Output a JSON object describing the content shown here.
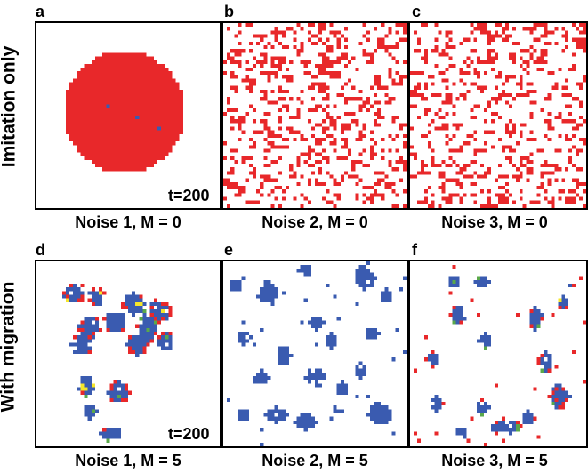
{
  "rows": [
    {
      "label": "Imitation only"
    },
    {
      "label": "With migration"
    }
  ],
  "panels": [
    {
      "letter": "a",
      "caption": "Noise 1, M = 0",
      "time": "t=200"
    },
    {
      "letter": "b",
      "caption": "Noise 2, M = 0"
    },
    {
      "letter": "c",
      "caption": "Noise 3, M = 0"
    },
    {
      "letter": "d",
      "caption": "Noise 1, M = 5",
      "time": "t=200"
    },
    {
      "letter": "e",
      "caption": "Noise 2, M = 5"
    },
    {
      "letter": "f",
      "caption": "Noise 3, M = 5"
    }
  ],
  "colors": {
    "red": "#e8282a",
    "blue": "#3a5bb0",
    "green": "#5aa84a",
    "yellow": "#f5e62a"
  }
}
